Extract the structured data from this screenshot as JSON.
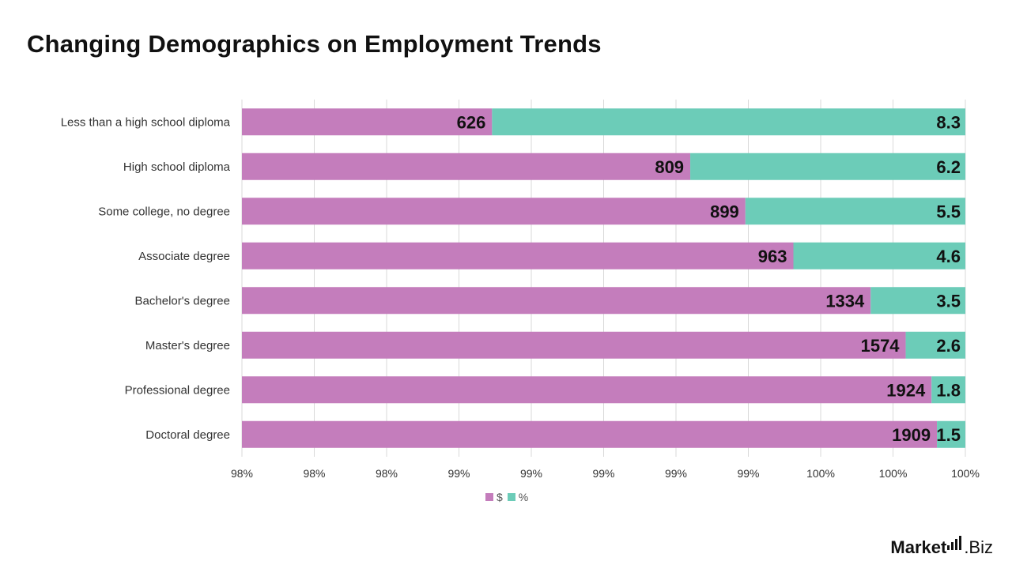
{
  "chart_data": {
    "type": "bar",
    "orientation": "horizontal",
    "stacked": "percent",
    "title": "Changing Demographics on Employment Trends",
    "categories": [
      "Less than a high school diploma",
      "High school diploma",
      "Some college, no degree",
      "Associate degree",
      "Bachelor's degree",
      "Master's degree",
      "Professional degree",
      "Doctoral degree"
    ],
    "series": [
      {
        "name": "$",
        "color": "#c47dbc",
        "values": [
          626,
          809,
          899,
          963,
          1334,
          1574,
          1924,
          1909
        ]
      },
      {
        "name": "%",
        "color": "#6cccb8",
        "values": [
          8.3,
          6.2,
          5.5,
          4.6,
          3.5,
          2.6,
          1.8,
          1.5
        ]
      }
    ],
    "x_tick_labels": [
      "98%",
      "98%",
      "98%",
      "99%",
      "99%",
      "99%",
      "99%",
      "99%",
      "100%",
      "100%",
      "100%"
    ],
    "xlim": [
      0.98,
      1.0
    ],
    "grid": true,
    "legend_position": "bottom"
  },
  "brand": {
    "part1": "Market",
    "part2": ".Biz"
  }
}
